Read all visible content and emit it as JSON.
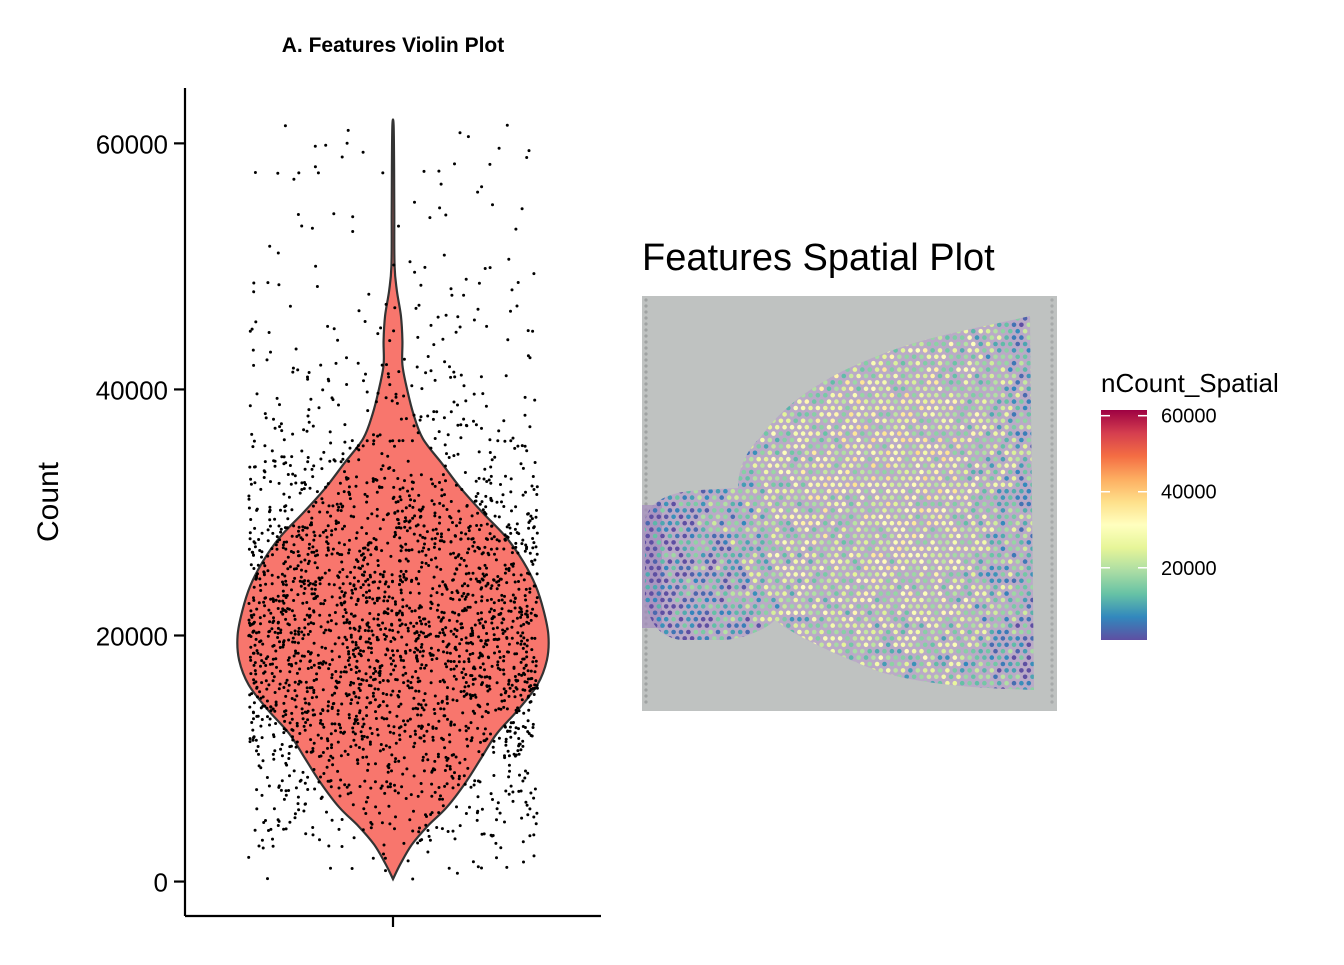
{
  "chart_data": [
    {
      "type": "violin",
      "title": "A. Features Violin Plot",
      "xlabel": "",
      "ylabel": "Count",
      "ylim": [
        -2800,
        64500
      ],
      "y_ticks": [
        0,
        20000,
        40000,
        60000
      ],
      "y_tick_labels": [
        "0",
        "20000",
        "40000",
        "60000"
      ],
      "x_ticks": [
        ""
      ],
      "grid": false,
      "fill_color": "#F8766D",
      "outline_color": "#333333",
      "point_color": "#000000",
      "max_value": 61500,
      "min_value": 200,
      "n_points": 2600,
      "density_profile": [
        {
          "y": 200,
          "half_width": 0.0
        },
        {
          "y": 1500,
          "half_width": 0.05
        },
        {
          "y": 3000,
          "half_width": 0.12
        },
        {
          "y": 4500,
          "half_width": 0.22
        },
        {
          "y": 6000,
          "half_width": 0.34
        },
        {
          "y": 8000,
          "half_width": 0.46
        },
        {
          "y": 10000,
          "half_width": 0.56
        },
        {
          "y": 12000,
          "half_width": 0.66
        },
        {
          "y": 14000,
          "half_width": 0.8
        },
        {
          "y": 16000,
          "half_width": 0.92
        },
        {
          "y": 18000,
          "half_width": 0.98
        },
        {
          "y": 20000,
          "half_width": 0.99
        },
        {
          "y": 22000,
          "half_width": 0.96
        },
        {
          "y": 24000,
          "half_width": 0.91
        },
        {
          "y": 26000,
          "half_width": 0.83
        },
        {
          "y": 28000,
          "half_width": 0.72
        },
        {
          "y": 30000,
          "half_width": 0.57
        },
        {
          "y": 32000,
          "half_width": 0.43
        },
        {
          "y": 34000,
          "half_width": 0.31
        },
        {
          "y": 36000,
          "half_width": 0.19
        },
        {
          "y": 38000,
          "half_width": 0.13
        },
        {
          "y": 40000,
          "half_width": 0.09
        },
        {
          "y": 42000,
          "half_width": 0.06
        },
        {
          "y": 44000,
          "half_width": 0.06
        },
        {
          "y": 46000,
          "half_width": 0.05
        },
        {
          "y": 48000,
          "half_width": 0.025
        },
        {
          "y": 50000,
          "half_width": 0.01
        },
        {
          "y": 54000,
          "half_width": 0.008
        },
        {
          "y": 58000,
          "half_width": 0.007
        },
        {
          "y": 61500,
          "half_width": 0.004
        }
      ]
    },
    {
      "type": "spatial_heatmap",
      "title": "Features Spatial Plot",
      "legend_title": "nCount_Spatial",
      "legend_ticks": [
        20000,
        40000,
        60000
      ],
      "legend_tick_labels": [
        "20000",
        "40000",
        "60000"
      ],
      "legend_range": [
        1000,
        61500
      ],
      "legend_placement": "right",
      "colormap": [
        "#5E4FA2",
        "#3288BD",
        "#66C2A5",
        "#ABDDA4",
        "#E6F598",
        "#FFFFBF",
        "#FEE08B",
        "#FDAE61",
        "#F46D43",
        "#D53E4F",
        "#9E0142"
      ],
      "background_color": "#BFC2C1"
    }
  ]
}
